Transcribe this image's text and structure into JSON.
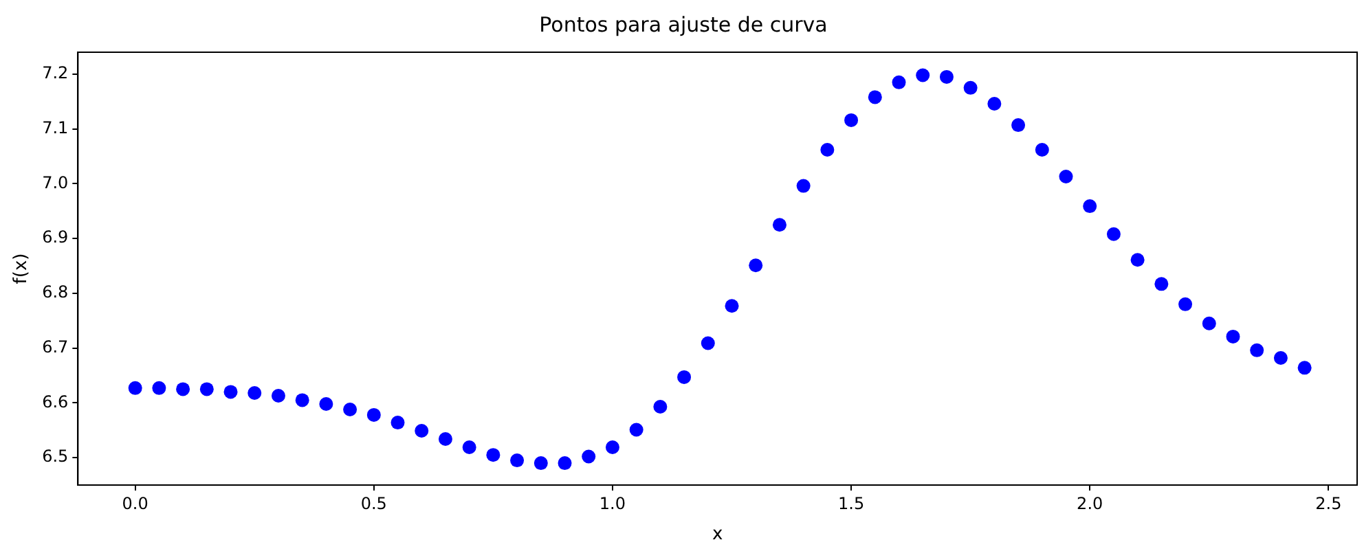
{
  "chart_data": {
    "type": "scatter",
    "title": "Pontos para ajuste de curva",
    "xlabel": "x",
    "ylabel": "f(x)",
    "x": [
      0,
      0.05,
      0.1,
      0.15,
      0.2,
      0.25,
      0.3,
      0.35,
      0.4,
      0.45,
      0.5,
      0.55,
      0.6,
      0.65,
      0.7,
      0.75,
      0.8,
      0.85,
      0.9,
      0.95,
      1.0,
      1.05,
      1.1,
      1.15,
      1.2,
      1.25,
      1.3,
      1.35,
      1.4,
      1.45,
      1.5,
      1.55,
      1.6,
      1.65,
      1.7,
      1.75,
      1.8,
      1.85,
      1.9,
      1.95,
      2.0,
      2.05,
      2.1,
      2.15,
      2.2,
      2.25,
      2.3,
      2.35,
      2.4,
      2.45
    ],
    "series": [
      {
        "color": "#0000ff",
        "values": [
          6.627,
          6.627,
          6.625,
          6.625,
          6.62,
          6.618,
          6.613,
          6.605,
          6.598,
          6.588,
          6.578,
          6.564,
          6.549,
          6.534,
          6.519,
          6.505,
          6.495,
          6.49,
          6.49,
          6.502,
          6.519,
          6.551,
          6.593,
          6.647,
          6.709,
          6.777,
          6.851,
          6.925,
          6.996,
          7.062,
          7.116,
          7.158,
          7.185,
          7.198,
          7.195,
          7.175,
          7.146,
          7.107,
          7.062,
          7.013,
          6.959,
          6.908,
          6.861,
          6.817,
          6.78,
          6.745,
          6.721,
          6.696,
          6.682,
          6.664
        ]
      }
    ],
    "xlim": [
      -0.12,
      2.56
    ],
    "ylim": [
      6.45,
      7.24
    ],
    "xticks": [
      {
        "value": 0,
        "label": "0.0"
      },
      0.5,
      {
        "value": 1,
        "label": "1.0"
      },
      1.5,
      {
        "value": 2,
        "label": "2.0"
      },
      2.5
    ],
    "yticks": [
      {
        "value": 6.5,
        "label": "6.5"
      },
      6.6,
      6.7,
      6.8,
      6.9,
      {
        "value": 7,
        "label": "7.0"
      },
      7.1,
      7.2
    ],
    "marker": "circle",
    "grid": false,
    "legend": false
  }
}
